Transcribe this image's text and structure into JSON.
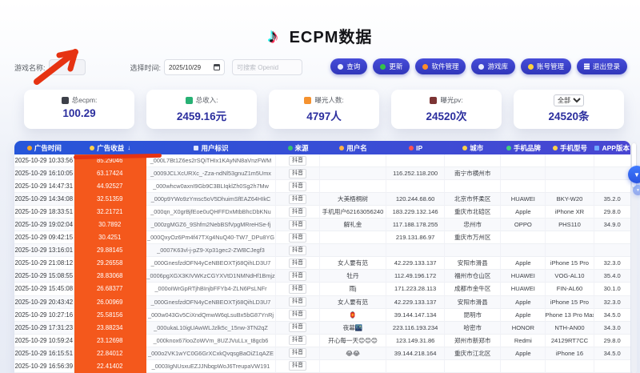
{
  "theme": {
    "navy": "#2b2e9e",
    "orange": "#f4581c",
    "hdr1": "#2656d9",
    "hdr2": "#4946d2",
    "red": "#e63312",
    "accent": "#3b43cc",
    "logo_cyan": "#25f4ee",
    "logo_red": "#fe2c55"
  },
  "header": {
    "title": "ECPM数据",
    "note_glyph": "♪"
  },
  "filters": {
    "game_label": "游戏名称:",
    "time_label": "选择时间:",
    "date_value": "2025/10/29",
    "openid_placeholder": "可搜索 Openid"
  },
  "toolbar": {
    "buttons": [
      {
        "label": "查询",
        "icon": "search-icon"
      },
      {
        "label": "更新",
        "icon": "refresh-icon"
      },
      {
        "label": "软件管理",
        "icon": "package-icon"
      },
      {
        "label": "游戏库",
        "icon": "game-library-icon"
      },
      {
        "label": "账号管理",
        "icon": "key-icon"
      },
      {
        "label": "退出登录",
        "icon": "logout-icon"
      }
    ]
  },
  "stats": {
    "cards": [
      {
        "label": "总ecpm:",
        "value": "100.29",
        "icon": "ecpm-icon"
      },
      {
        "label": "总收入:",
        "value": "2459.16元",
        "icon": "income-icon"
      },
      {
        "label": "曝光人数:",
        "value": "4797人",
        "icon": "people-icon"
      },
      {
        "label": "曝光pv:",
        "value": "24520次",
        "icon": "pv-icon"
      }
    ],
    "filter_card": {
      "select_value": "全部",
      "value": "24520条"
    }
  },
  "table": {
    "columns": [
      {
        "label": "广告时间",
        "icon": "clock-icon"
      },
      {
        "label": "广告收益",
        "icon": "coin-icon",
        "sort": "↓"
      },
      {
        "label": "用户标识",
        "icon": "id-icon"
      },
      {
        "label": "来源",
        "icon": "source-icon"
      },
      {
        "label": "用户名",
        "icon": "user-icon"
      },
      {
        "label": "IP",
        "icon": "ip-icon"
      },
      {
        "label": "城市",
        "icon": "city-icon"
      },
      {
        "label": "手机品牌",
        "icon": "brand-icon"
      },
      {
        "label": "手机型号",
        "icon": "model-icon"
      },
      {
        "label": "APP版本",
        "icon": "version-icon"
      }
    ],
    "rows": [
      {
        "time": "2025-10-29 10:33:56",
        "revenue": "85.29046",
        "openid": "_000L7Bt1Z6es2rSQiTHIx1KAyNN8aVnzFWM",
        "source": "抖音",
        "username": "",
        "ip": "",
        "city": "",
        "brand": "",
        "model": "",
        "version": ""
      },
      {
        "time": "2025-10-29 16:10:05",
        "revenue": "63.17424",
        "openid": "_0009JCLXcURXc_-Zza-ndNl53gnuZ1m5Umx",
        "source": "抖音",
        "username": "",
        "ip": "116.252.118.200",
        "city": "南宁市横州市",
        "brand": "",
        "model": "",
        "version": ""
      },
      {
        "time": "2025-10-29 14:47:31",
        "revenue": "44.92527",
        "openid": "_000whcw0axnI9Gb9C3BLIqklZh0Sg2h7Mw",
        "source": "抖音",
        "username": "",
        "ip": "",
        "city": "",
        "brand": "",
        "model": "",
        "version": ""
      },
      {
        "time": "2025-10-29 14:34:08",
        "revenue": "32.51359",
        "openid": "_000p9YWo9zYmsc5oV5DhuimSfEAZ64HIkC",
        "source": "抖音",
        "username": "大美梧桐树",
        "ip": "120.244.68.60",
        "city": "北京市怀柔区",
        "brand": "HUAWEI",
        "model": "BKY-W20",
        "version": "35.2.0"
      },
      {
        "time": "2025-10-29 18:33:51",
        "revenue": "32.21721",
        "openid": "_000qn_X0grBjfEoe0uQHFFDxMtbBhcDbKNu",
        "source": "抖音",
        "username": "手机用户62163056240",
        "ip": "183.229.132.146",
        "city": "重庆市北碚区",
        "brand": "Apple",
        "model": "iPhone XR",
        "version": "29.8.0"
      },
      {
        "time": "2025-10-29 19:02:04",
        "revenue": "30.7892",
        "openid": "_000zgMGZ6_9Shfm2NebBSfVpgMRreHSe-fj",
        "source": "抖音",
        "username": "解礼金",
        "ip": "117.188.178.255",
        "city": "忠州市",
        "brand": "OPPO",
        "model": "PHS110",
        "version": "34.9.0"
      },
      {
        "time": "2025-10-29 09:42:15",
        "revenue": "30.4251",
        "openid": "_000QxyOz6Pm4f47TXg4NuQ40-TW7_DPu8YG",
        "source": "抖音",
        "username": "",
        "ip": "219.131.86.97",
        "city": "重庆市万州区",
        "brand": "",
        "model": "",
        "version": ""
      },
      {
        "time": "2025-10-29 13:16:01",
        "revenue": "29.88145",
        "openid": "_0007K63vl-j-pZ9-Xp31gec2-ZWBCJegf3",
        "source": "抖音",
        "username": "",
        "ip": "",
        "city": "",
        "brand": "",
        "model": "",
        "version": ""
      },
      {
        "time": "2025-10-29 21:08:12",
        "revenue": "29.26558",
        "openid": "_000GnesfzdOFN4yCeNBEOXTj68QihLD3U7",
        "source": "抖音",
        "username": "女人要有范",
        "ip": "42.229.133.137",
        "city": "安阳市滑县",
        "brand": "Apple",
        "model": "iPhone 15 Pro",
        "version": "32.3.0"
      },
      {
        "time": "2025-10-29 15:08:55",
        "revenue": "28.83068",
        "openid": "_0006pgXGX3KIVWKzCGYXVtD1NMNdHf1Bmjz",
        "source": "抖音",
        "username": "牡丹",
        "ip": "112.49.196.172",
        "city": "福州市仓山区",
        "brand": "HUAWEI",
        "model": "VOG-AL10",
        "version": "35.4.0"
      },
      {
        "time": "2025-10-29 15:45:08",
        "revenue": "26.68377",
        "openid": "_000oIWrGpRTjhBInjbFFYb4-ZLN6PsLNFr",
        "source": "抖音",
        "username": "雨j",
        "ip": "171.223.28.113",
        "city": "成都市金牛区",
        "brand": "HUAWEI",
        "model": "FIN-AL60",
        "version": "30.1.0"
      },
      {
        "time": "2025-10-29 20:43:42",
        "revenue": "26.00969",
        "openid": "_000GnesfzdOFN4yCeNBEOXTj68QihLD3U7",
        "source": "抖音",
        "username": "女人要有范",
        "ip": "42.229.133.137",
        "city": "安阳市滑县",
        "brand": "Apple",
        "model": "iPhone 15 Pro",
        "version": "32.3.0"
      },
      {
        "time": "2025-10-29 10:27:16",
        "revenue": "25.58156",
        "openid": "_000w043Gv5CiXndQmwW6qLsuBx5bG87YnRj",
        "source": "抖音",
        "username": "🏮",
        "ip": "39.144.147.134",
        "city": "昆明市",
        "brand": "Apple",
        "model": "iPhone 13 Pro Max",
        "version": "34.5.0"
      },
      {
        "time": "2025-10-29 17:31:23",
        "revenue": "23.88234",
        "openid": "_000ukaL10igUAwWLJzlk5c_15nw-3TN2qZ",
        "source": "抖音",
        "username": "夜幕🌃",
        "ip": "223.116.193.234",
        "city": "哈密市",
        "brand": "HONOR",
        "model": "NTH-AN00",
        "version": "34.3.0"
      },
      {
        "time": "2025-10-29 10:59:24",
        "revenue": "23.12698",
        "openid": "_000knox67looZoWVm_8UZJVuLLx_t8gcb6",
        "source": "抖音",
        "username": "开心每一天😊😊😊",
        "ip": "123.149.31.86",
        "city": "郑州市新郑市",
        "brand": "Redmi",
        "model": "24129RT7CC",
        "version": "29.8.0"
      },
      {
        "time": "2025-10-29 16:15:51",
        "revenue": "22.84012",
        "openid": "_000o2VK1wYC0G6GrXCxkQvqsgBaOiZ1qAZE",
        "source": "抖音",
        "username": "😂😂",
        "ip": "39.144.218.164",
        "city": "重庆市江北区",
        "brand": "Apple",
        "model": "iPhone 16",
        "version": "34.5.0"
      },
      {
        "time": "2025-10-29 16:56:39",
        "revenue": "22.41402",
        "openid": "_0003IgNUsxuEZJJNbqpWoJ6TreupaVW191",
        "source": "抖音",
        "username": "",
        "ip": "",
        "city": "",
        "brand": "",
        "model": "",
        "version": ""
      }
    ]
  }
}
